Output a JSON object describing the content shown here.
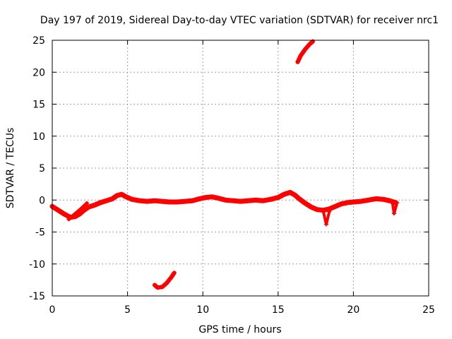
{
  "chart_data": {
    "type": "scatter",
    "title": "Day 197 of 2019, Sidereal Day-to-day VTEC variation (SDTVAR) for receiver nrc1",
    "xlabel": "GPS time / hours",
    "ylabel": "SDTVAR / TECUs",
    "xlim": [
      0,
      25
    ],
    "ylim": [
      -15,
      25
    ],
    "xticks": [
      0,
      5,
      10,
      15,
      20,
      25
    ],
    "yticks": [
      -15,
      -10,
      -5,
      0,
      5,
      10,
      15,
      20,
      25
    ],
    "grid": true,
    "legend": "none",
    "series": [
      {
        "name": "SDTVAR main trace",
        "color": "#ff0000",
        "x": [
          0.0,
          0.4,
          0.8,
          1.2,
          1.5,
          1.8,
          2.1,
          2.4,
          2.8,
          3.2,
          3.6,
          4.0,
          4.3,
          4.6,
          4.9,
          5.3,
          5.8,
          6.3,
          6.8,
          7.3,
          7.8,
          8.3,
          8.8,
          9.3,
          9.8,
          10.2,
          10.6,
          11.0,
          11.5,
          12.0,
          12.5,
          13.0,
          13.5,
          14.0,
          14.5,
          15.0,
          15.4,
          15.8,
          16.1,
          16.4,
          16.8,
          17.2,
          17.6,
          18.0,
          18.4,
          18.8,
          19.2,
          19.6,
          20.0,
          20.5,
          21.0,
          21.5,
          22.0,
          22.4,
          22.8
        ],
        "y": [
          -1.0,
          -1.6,
          -2.2,
          -2.7,
          -2.6,
          -2.2,
          -1.6,
          -1.1,
          -0.8,
          -0.4,
          -0.1,
          0.2,
          0.7,
          0.9,
          0.5,
          0.1,
          -0.1,
          -0.2,
          -0.1,
          -0.2,
          -0.3,
          -0.3,
          -0.2,
          -0.1,
          0.2,
          0.4,
          0.5,
          0.3,
          0.0,
          -0.1,
          -0.2,
          -0.1,
          0.0,
          -0.1,
          0.1,
          0.4,
          0.9,
          1.2,
          0.8,
          0.2,
          -0.5,
          -1.1,
          -1.5,
          -1.6,
          -1.4,
          -1.0,
          -0.6,
          -0.4,
          -0.3,
          -0.2,
          0.0,
          0.2,
          0.1,
          -0.1,
          -0.4
        ],
        "stroke_width": 7
      },
      {
        "name": "SDTVAR branch near start",
        "color": "#ff0000",
        "x": [
          1.1,
          1.5,
          1.9,
          2.3
        ],
        "y": [
          -3.0,
          -2.2,
          -1.4,
          -0.5
        ],
        "stroke_width": 5
      },
      {
        "name": "SDTVAR drop near 18 h",
        "color": "#ff0000",
        "x": [
          18.0,
          18.2,
          18.4
        ],
        "y": [
          -1.8,
          -3.8,
          -1.8
        ],
        "stroke_width": 4
      },
      {
        "name": "SDTVAR drop near 22.8 h",
        "color": "#ff0000",
        "x": [
          22.6,
          22.7,
          22.9
        ],
        "y": [
          -0.5,
          -2.1,
          -0.4
        ],
        "stroke_width": 4
      },
      {
        "name": "SDTVAR upper arc",
        "color": "#ff0000",
        "x": [
          16.3,
          16.5,
          16.8,
          17.1,
          17.3
        ],
        "y": [
          21.6,
          22.6,
          23.6,
          24.4,
          24.8
        ],
        "stroke_width": 6
      },
      {
        "name": "SDTVAR lower arc",
        "color": "#ff0000",
        "x": [
          6.8,
          7.0,
          7.3,
          7.6,
          7.9,
          8.1
        ],
        "y": [
          -13.3,
          -13.7,
          -13.6,
          -13.0,
          -12.1,
          -11.4
        ],
        "stroke_width": 6
      }
    ]
  }
}
